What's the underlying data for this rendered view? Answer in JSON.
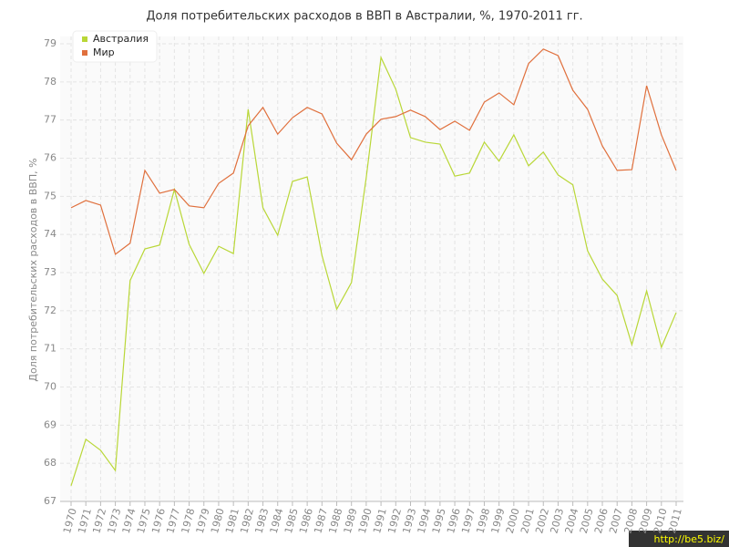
{
  "chart_data": {
    "type": "line",
    "title": "Доля потребительских расходов в ВВП в Австралии, %, 1970-2011 гг.",
    "y_label": "Доля потребительских расходов в ВВП, %",
    "categories": [
      "1970",
      "1971",
      "1972",
      "1973",
      "1974",
      "1975",
      "1976",
      "1977",
      "1978",
      "1979",
      "1980",
      "1981",
      "1982",
      "1983",
      "1984",
      "1985",
      "1986",
      "1987",
      "1988",
      "1989",
      "1990",
      "1991",
      "1992",
      "1993",
      "1994",
      "1995",
      "1996",
      "1997",
      "1998",
      "1999",
      "2000",
      "2001",
      "2002",
      "2003",
      "2004",
      "2005",
      "2006",
      "2007",
      "2008",
      "2009",
      "2010",
      "2011"
    ],
    "series": [
      {
        "name": "Австралия",
        "color": "#b9d737",
        "values": [
          67.41,
          68.63,
          68.34,
          67.81,
          72.79,
          73.62,
          73.72,
          75.18,
          73.74,
          72.98,
          73.69,
          73.5,
          77.28,
          74.7,
          73.98,
          75.39,
          75.51,
          73.45,
          72.04,
          72.74,
          75.49,
          78.64,
          77.81,
          76.54,
          76.42,
          76.37,
          75.53,
          75.61,
          76.42,
          75.92,
          76.61,
          75.8,
          76.16,
          75.56,
          75.3,
          73.57,
          72.83,
          72.4,
          71.11,
          72.52,
          71.04,
          71.95
        ]
      },
      {
        "name": "Мир",
        "color": "#e0703d",
        "values": [
          74.7,
          74.89,
          74.77,
          73.48,
          73.77,
          75.68,
          75.08,
          75.18,
          74.75,
          74.7,
          75.34,
          75.61,
          76.85,
          77.33,
          76.63,
          77.06,
          77.33,
          77.16,
          76.39,
          75.96,
          76.63,
          77.02,
          77.09,
          77.26,
          77.09,
          76.75,
          76.97,
          76.73,
          77.47,
          77.71,
          77.4,
          78.48,
          78.86,
          78.69,
          77.78,
          77.28,
          76.32,
          75.68,
          75.7,
          77.9,
          76.61,
          75.68
        ]
      }
    ],
    "ylim": [
      67,
      79
    ],
    "yticks": [
      67,
      68,
      69,
      70,
      71,
      72,
      73,
      74,
      75,
      76,
      77,
      78,
      79
    ],
    "grid": true,
    "legend": "top-left",
    "watermark": "http://be5.biz/"
  }
}
